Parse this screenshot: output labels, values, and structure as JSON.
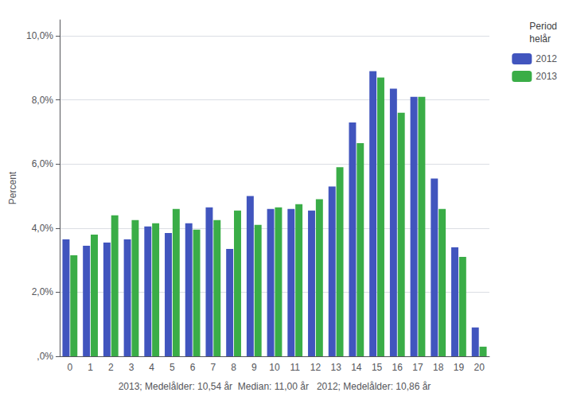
{
  "chart_data": {
    "type": "bar",
    "xlabel": "2013; Medelålder: 10,54 år  Median: 11,00 år   2012; Medelålder: 10,86 år",
    "ylabel": "Percent",
    "legend_title": "Period\nhelår",
    "categories": [
      "0",
      "1",
      "2",
      "3",
      "4",
      "5",
      "6",
      "7",
      "8",
      "9",
      "10",
      "11",
      "12",
      "13",
      "14",
      "15",
      "16",
      "17",
      "18",
      "19",
      "20"
    ],
    "series": [
      {
        "name": "2012",
        "color": "#4155BE",
        "values": [
          3.65,
          3.45,
          3.55,
          3.65,
          4.05,
          3.85,
          4.15,
          4.65,
          3.35,
          5.0,
          4.6,
          4.6,
          4.55,
          5.3,
          7.3,
          8.9,
          8.35,
          8.1,
          5.55,
          3.4,
          0.9
        ]
      },
      {
        "name": "2013",
        "color": "#3AAD47",
        "values": [
          3.15,
          3.8,
          4.4,
          4.25,
          4.15,
          4.6,
          3.95,
          4.25,
          4.55,
          4.1,
          4.65,
          4.75,
          4.9,
          5.9,
          6.65,
          8.7,
          7.6,
          8.1,
          4.6,
          3.1,
          0.3
        ]
      }
    ],
    "ylim": [
      0,
      10.5
    ],
    "yticks": [
      {
        "value": 0.0,
        "label": ",0%"
      },
      {
        "value": 2.0,
        "label": "2,0%"
      },
      {
        "value": 4.0,
        "label": "4,0%"
      },
      {
        "value": 6.0,
        "label": "6,0%"
      },
      {
        "value": 8.0,
        "label": "8,0%"
      },
      {
        "value": 10.0,
        "label": "10,0%"
      }
    ],
    "grid": true,
    "legend": "upper right"
  }
}
